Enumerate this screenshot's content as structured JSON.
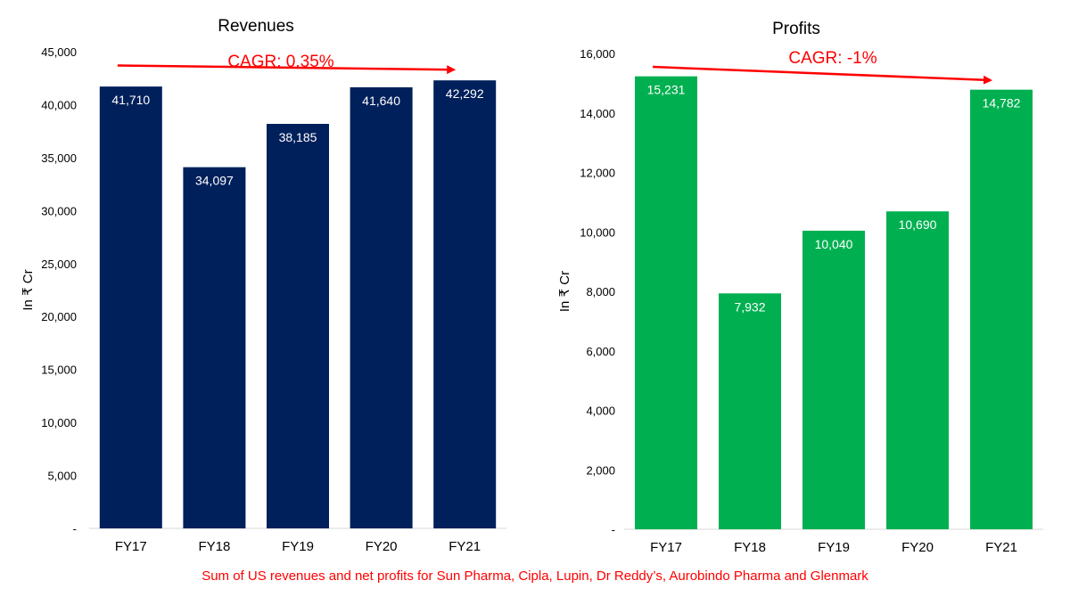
{
  "chart_data": [
    {
      "type": "bar",
      "title": "Revenues",
      "ylabel": "In ₹ Cr",
      "xlabel": "",
      "categories": [
        "FY17",
        "FY18",
        "FY19",
        "FY20",
        "FY21"
      ],
      "values": [
        41710,
        34097,
        38185,
        41640,
        42292
      ],
      "data_labels": [
        "41,710",
        "34,097",
        "38,185",
        "41,640",
        "42,292"
      ],
      "ylim": [
        0,
        45000
      ],
      "yticks": [
        0,
        5000,
        10000,
        15000,
        20000,
        25000,
        30000,
        35000,
        40000,
        45000
      ],
      "ytick_labels": [
        "-",
        "5,000",
        "10,000",
        "15,000",
        "20,000",
        "25,000",
        "30,000",
        "35,000",
        "40,000",
        "45,000"
      ],
      "bar_color": "#00205b",
      "grid": false,
      "annotation": {
        "text": "CAGR: 0.35%",
        "color": "#ff0000",
        "arrow_from": [
          "FY17",
          43700
        ],
        "arrow_to": [
          "FY21",
          43300
        ]
      }
    },
    {
      "type": "bar",
      "title": "Profits",
      "ylabel": "In ₹ Cr",
      "xlabel": "",
      "categories": [
        "FY17",
        "FY18",
        "FY19",
        "FY20",
        "FY21"
      ],
      "values": [
        15231,
        7932,
        10040,
        10690,
        14782
      ],
      "data_labels": [
        "15,231",
        "7,932",
        "10,040",
        "10,690",
        "14,782"
      ],
      "ylim": [
        0,
        16000
      ],
      "yticks": [
        0,
        2000,
        4000,
        6000,
        8000,
        10000,
        12000,
        14000,
        16000
      ],
      "ytick_labels": [
        "-",
        "2,000",
        "4,000",
        "6,000",
        "8,000",
        "10,000",
        "12,000",
        "14,000",
        "16,000"
      ],
      "bar_color": "#00b050",
      "grid": false,
      "annotation": {
        "text": "CAGR: -1%",
        "color": "#ff0000",
        "arrow_from": [
          "FY17",
          15550
        ],
        "arrow_to": [
          "FY21",
          15100
        ]
      }
    }
  ],
  "footer": "Sum of US revenues and net profits for Sun Pharma, Cipla, Lupin, Dr Reddy’s, Aurobindo Pharma and Glenmark"
}
